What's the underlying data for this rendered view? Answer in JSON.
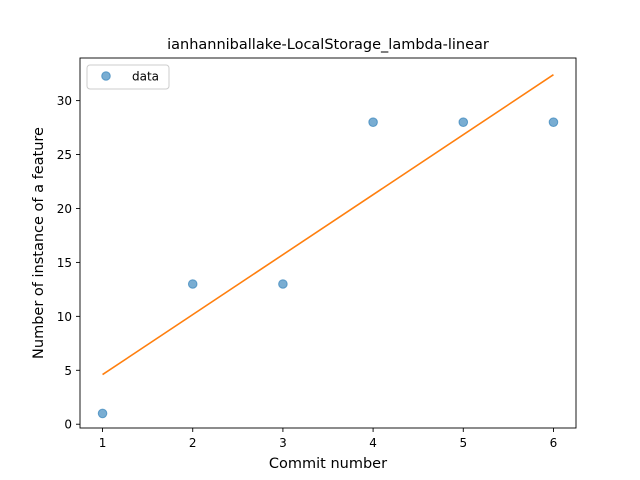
{
  "chart_data": {
    "type": "scatter",
    "title": "ianhanniballake-LocalStorage_lambda-linear",
    "xlabel": "Commit number",
    "ylabel": "Number of instance of a feature",
    "xlim": [
      0.75,
      6.25
    ],
    "ylim": [
      -0.35,
      33.95
    ],
    "x_ticks": [
      1,
      2,
      3,
      4,
      5,
      6
    ],
    "y_ticks": [
      0,
      5,
      10,
      15,
      20,
      25,
      30
    ],
    "grid": false,
    "legend": {
      "position": "top-left",
      "entries": [
        "data"
      ]
    },
    "series": [
      {
        "name": "data",
        "kind": "scatter",
        "color": "#1f77b4",
        "x": [
          1,
          2,
          3,
          4,
          5,
          6
        ],
        "y": [
          1,
          13,
          13,
          28,
          28,
          28
        ]
      },
      {
        "kind": "line",
        "color": "#ff7f0e",
        "x": [
          1,
          6
        ],
        "y": [
          4.6,
          32.4
        ]
      }
    ]
  }
}
